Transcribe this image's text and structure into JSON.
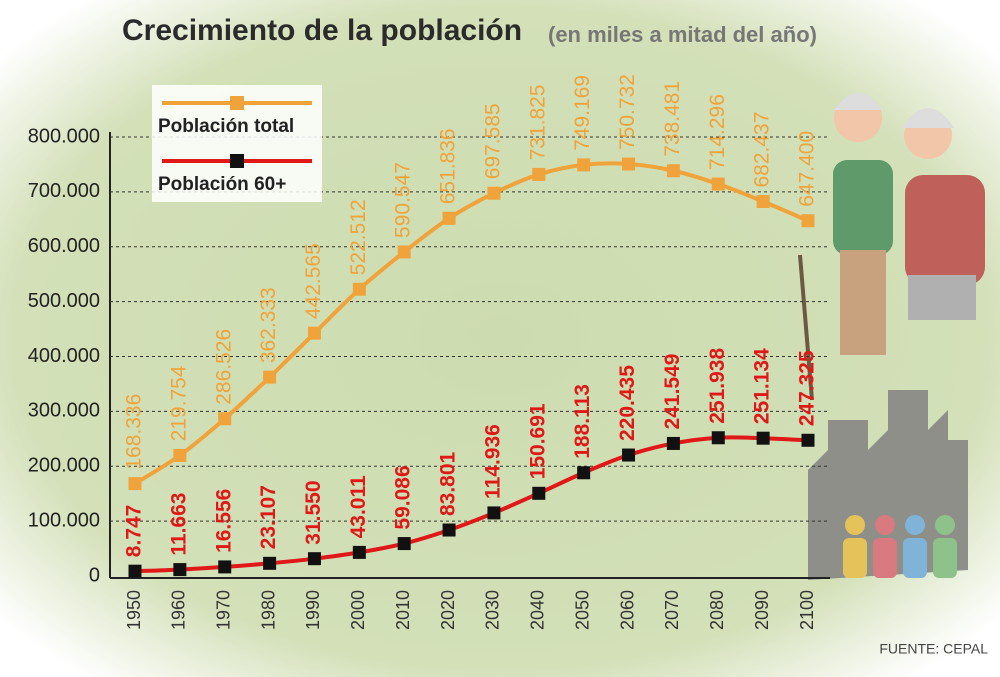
{
  "chart_data": {
    "type": "line",
    "title": "Crecimiento de la población",
    "subtitle": "(en miles a mitad del año)",
    "source": "FUENTE: CEPAL",
    "categories": [
      "1950",
      "1960",
      "1970",
      "1980",
      "1990",
      "2000",
      "2010",
      "2020",
      "2030",
      "2040",
      "2050",
      "2060",
      "2070",
      "2080",
      "2090",
      "2100"
    ],
    "series": [
      {
        "name": "Población total",
        "color": "#f0a33a",
        "values": [
          168336,
          219754,
          286526,
          362333,
          442565,
          522512,
          590547,
          651836,
          697585,
          731825,
          749169,
          750732,
          738481,
          714296,
          682437,
          647400
        ],
        "value_labels": [
          "168.336",
          "219.754",
          "286.526",
          "362.333",
          "442.565",
          "522.512",
          "590.547",
          "651.836",
          "697.585",
          "731.825",
          "749.169",
          "750.732",
          "738.481",
          "714.296",
          "682.437",
          "647.400"
        ]
      },
      {
        "name": "Población 60+",
        "color": "#e01818",
        "values": [
          8747,
          11663,
          16556,
          23107,
          31550,
          43011,
          59086,
          83801,
          114936,
          150691,
          188113,
          220435,
          241549,
          251938,
          251134,
          247325
        ],
        "value_labels": [
          "8.747",
          "11.663",
          "16.556",
          "23.107",
          "31.550",
          "43.011",
          "59.086",
          "83.801",
          "114.936",
          "150.691",
          "188.113",
          "220.435",
          "241.549",
          "251.938",
          "251.134",
          "247.325"
        ]
      }
    ],
    "ylim": [
      0,
      800000
    ],
    "yticks": [
      0,
      {
        "value": 100000,
        "label": "100.000"
      },
      {
        "value": 200000,
        "label": "200.000"
      },
      {
        "value": 300000,
        "label": "300.000"
      },
      {
        "value": 400000,
        "label": "400.000"
      },
      {
        "value": 500000,
        "label": "500.000"
      },
      {
        "value": 600000,
        "label": "600.000"
      },
      {
        "value": 700000,
        "label": "700.000"
      },
      {
        "value": 800000,
        "label": "800.000"
      }
    ],
    "grid": true
  }
}
